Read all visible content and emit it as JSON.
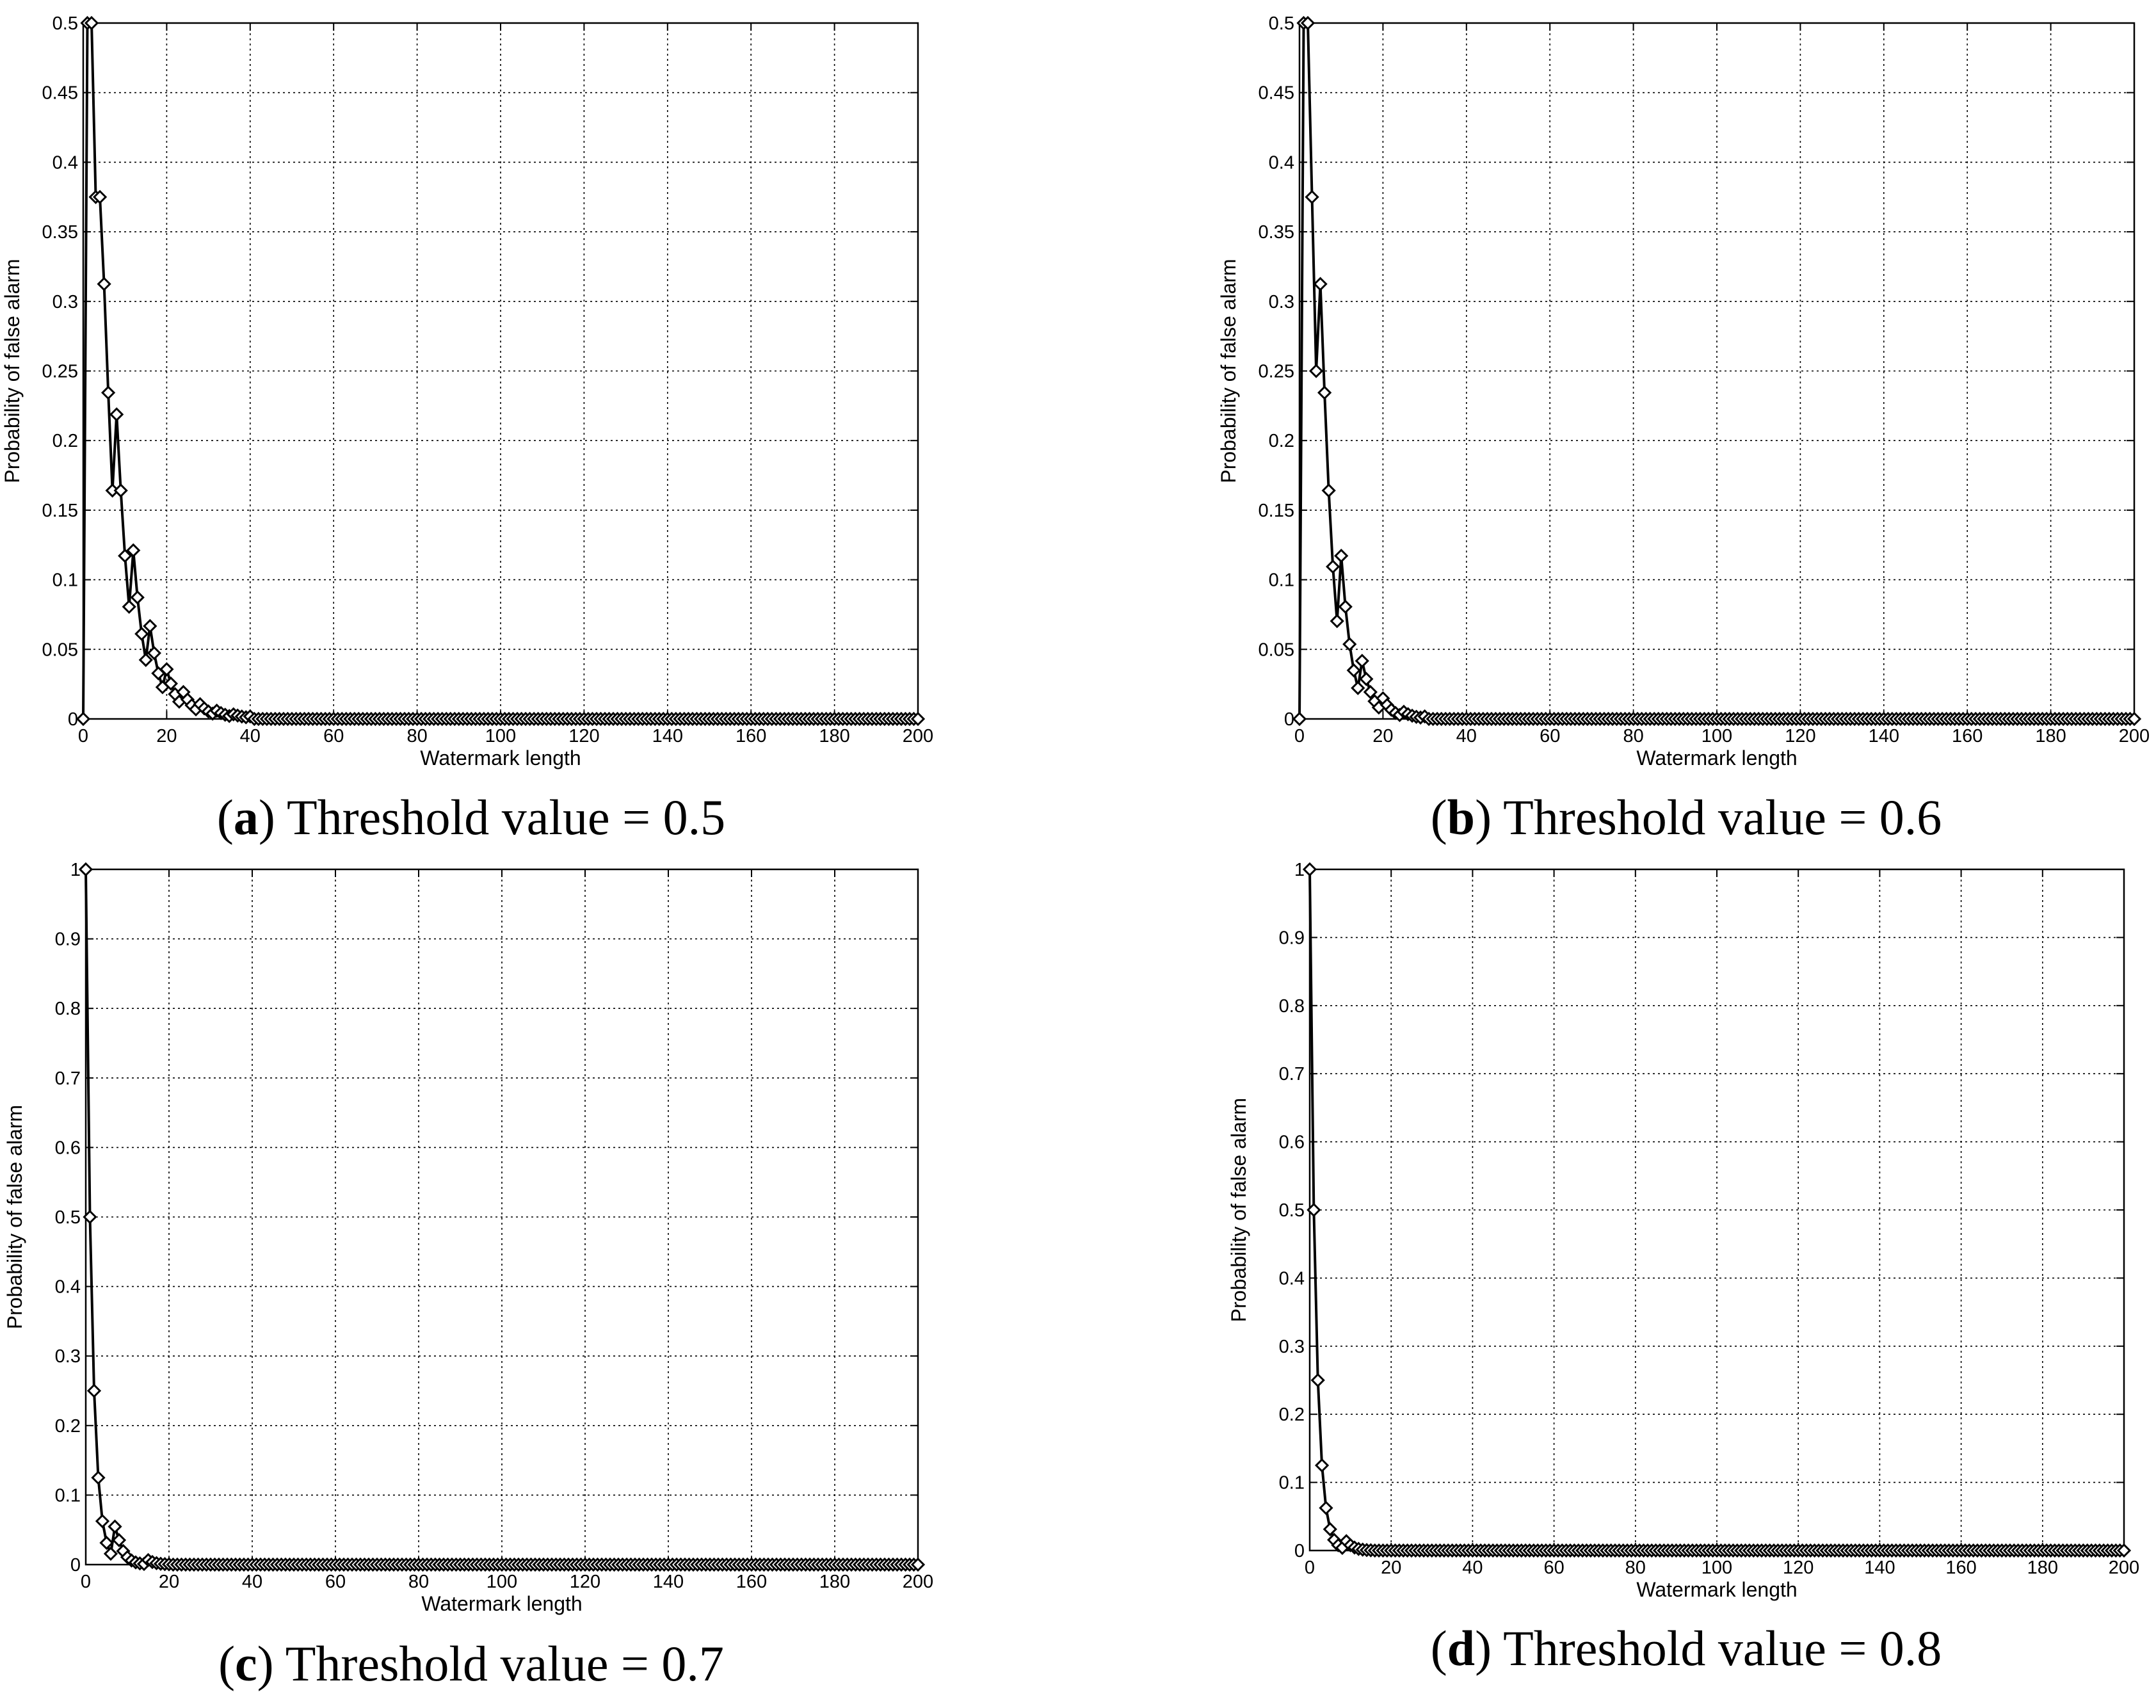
{
  "figure": {
    "panels": [
      {
        "id": "a",
        "caption_label": "a",
        "caption_text": "Threshold value = 0.5",
        "chart_data": {
          "type": "line",
          "xlabel": "Watermark length",
          "ylabel": "Probability of false alarm",
          "xlim": [
            0,
            200
          ],
          "ylim": [
            0,
            0.5
          ],
          "xticks": [
            0,
            20,
            40,
            60,
            80,
            100,
            120,
            140,
            160,
            180,
            200
          ],
          "xtick_labels": [
            "0",
            "20",
            "40",
            "60",
            "80",
            "100",
            "120",
            "140",
            "160",
            "180",
            "200"
          ],
          "yticks": [
            0,
            0.05,
            0.1,
            0.15,
            0.2,
            0.25,
            0.3,
            0.35,
            0.4,
            0.45,
            0.5
          ],
          "ytick_labels": [
            "0",
            "0.05",
            "0.1",
            "0.15",
            "0.2",
            "0.25",
            "0.3",
            "0.35",
            "0.4",
            "0.45",
            "0.5"
          ],
          "grid": true,
          "marker": "diamond",
          "head": [
            0,
            0.5,
            0.5,
            0.375,
            0.375,
            0.3125,
            0.2344,
            0.1641,
            0.2188,
            0.1641,
            0.1172,
            0.0806,
            0.1211,
            0.0873,
            0.0611,
            0.0424,
            0.0667,
            0.0473,
            0.0328,
            0.0228,
            0.0357,
            0.0254,
            0.0178,
            0.0124,
            0.0193,
            0.0139,
            0.0098,
            0.0069,
            0.0106,
            0.0076,
            0.0054,
            0.0038,
            0.0059,
            0.0042,
            0.003,
            0.0021,
            0.0033,
            0.0024,
            0.0017,
            0.0012,
            0.0018
          ],
          "tail_value": 0,
          "x_last": 200
        }
      },
      {
        "id": "b",
        "caption_label": "b",
        "caption_text": "Threshold value = 0.6",
        "chart_data": {
          "type": "line",
          "xlabel": "Watermark length",
          "ylabel": "Probability of false alarm",
          "xlim": [
            0,
            200
          ],
          "ylim": [
            0,
            0.5
          ],
          "xticks": [
            0,
            20,
            40,
            60,
            80,
            100,
            120,
            140,
            160,
            180,
            200
          ],
          "xtick_labels": [
            "0",
            "20",
            "40",
            "60",
            "80",
            "100",
            "120",
            "140",
            "160",
            "180",
            "200"
          ],
          "yticks": [
            0,
            0.05,
            0.1,
            0.15,
            0.2,
            0.25,
            0.3,
            0.35,
            0.4,
            0.45,
            0.5
          ],
          "ytick_labels": [
            "0",
            "0.05",
            "0.1",
            "0.15",
            "0.2",
            "0.25",
            "0.3",
            "0.35",
            "0.4",
            "0.45",
            "0.5"
          ],
          "grid": true,
          "marker": "diamond",
          "head": [
            0,
            0.5,
            0.5,
            0.375,
            0.25,
            0.3125,
            0.2344,
            0.1641,
            0.1094,
            0.0703,
            0.1172,
            0.0806,
            0.0537,
            0.0349,
            0.0222,
            0.0417,
            0.0287,
            0.0193,
            0.0127,
            0.0082,
            0.0148,
            0.01,
            0.0066,
            0.0043,
            0.0028,
            0.0051,
            0.0034,
            0.0023,
            0.0015,
            0.001,
            0.0018
          ],
          "tail_value": 0,
          "x_last": 200
        }
      },
      {
        "id": "c",
        "caption_label": "c",
        "caption_text": "Threshold value = 0.7",
        "chart_data": {
          "type": "line",
          "xlabel": "Watermark length",
          "ylabel": "Probability of false alarm",
          "xlim": [
            0,
            200
          ],
          "ylim": [
            0,
            1
          ],
          "xticks": [
            0,
            20,
            40,
            60,
            80,
            100,
            120,
            140,
            160,
            180,
            200
          ],
          "xtick_labels": [
            "0",
            "20",
            "40",
            "60",
            "80",
            "100",
            "120",
            "140",
            "160",
            "180",
            "200"
          ],
          "yticks": [
            0,
            0.1,
            0.2,
            0.3,
            0.4,
            0.5,
            0.6,
            0.7,
            0.8,
            0.9,
            1
          ],
          "ytick_labels": [
            "0",
            "0.1",
            "0.2",
            "0.3",
            "0.4",
            "0.5",
            "0.6",
            "0.7",
            "0.8",
            "0.9",
            "1"
          ],
          "grid": true,
          "marker": "diamond",
          "head": [
            1,
            0.5,
            0.25,
            0.125,
            0.0625,
            0.0313,
            0.0156,
            0.0547,
            0.0352,
            0.0195,
            0.0107,
            0.0059,
            0.0032,
            0.0017,
            0.0009,
            0.0065,
            0.0037,
            0.0021,
            0.0012,
            0.0007,
            0.0004
          ],
          "tail_value": 0,
          "x_last": 200
        }
      },
      {
        "id": "d",
        "caption_label": "d",
        "caption_text": "Threshold value = 0.8",
        "chart_data": {
          "type": "line",
          "xlabel": "Watermark length",
          "ylabel": "Probability of false alarm",
          "xlim": [
            0,
            200
          ],
          "ylim": [
            0,
            1
          ],
          "xticks": [
            0,
            20,
            40,
            60,
            80,
            100,
            120,
            140,
            160,
            180,
            200
          ],
          "xtick_labels": [
            "0",
            "20",
            "40",
            "60",
            "80",
            "100",
            "120",
            "140",
            "160",
            "180",
            "200"
          ],
          "yticks": [
            0,
            0.1,
            0.2,
            0.3,
            0.4,
            0.5,
            0.6,
            0.7,
            0.8,
            0.9,
            1
          ],
          "ytick_labels": [
            "0",
            "0.1",
            "0.2",
            "0.3",
            "0.4",
            "0.5",
            "0.6",
            "0.7",
            "0.8",
            "0.9",
            "1"
          ],
          "grid": true,
          "marker": "diamond",
          "head": [
            1,
            0.5,
            0.25,
            0.125,
            0.0625,
            0.0313,
            0.0156,
            0.0078,
            0.0039,
            0.0137,
            0.0078,
            0.0044,
            0.0024,
            0.0013,
            0.0007,
            0.0004
          ],
          "tail_value": 0,
          "x_last": 200
        }
      }
    ]
  }
}
